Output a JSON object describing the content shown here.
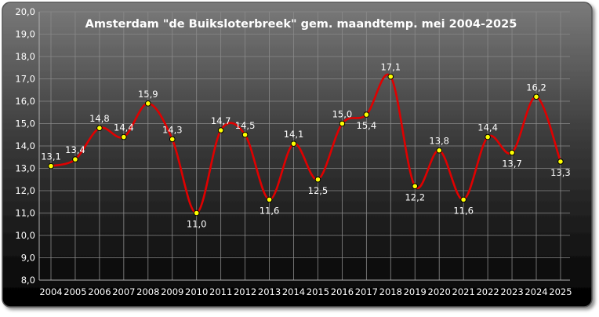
{
  "chart_data": {
    "type": "line",
    "title": "Amsterdam \"de Buiksloterbreek\" gem. maandtemp. mei 2004-2025",
    "xlabel": "",
    "ylabel": "",
    "ylim": [
      8.0,
      20.0
    ],
    "y_ticks": [
      "8,0",
      "9,0",
      "10,0",
      "11,0",
      "12,0",
      "13,0",
      "14,0",
      "15,0",
      "16,0",
      "17,0",
      "18,0",
      "19,0",
      "20,0"
    ],
    "categories": [
      "2004",
      "2005",
      "2006",
      "2007",
      "2008",
      "2009",
      "2010",
      "2011",
      "2012",
      "2013",
      "2014",
      "2015",
      "2016",
      "2017",
      "2018",
      "2019",
      "2020",
      "2021",
      "2022",
      "2023",
      "2024",
      "2025"
    ],
    "series": [
      {
        "values": [
          13.1,
          13.4,
          14.8,
          14.4,
          15.9,
          14.3,
          11.0,
          14.7,
          14.5,
          11.6,
          14.1,
          12.5,
          15.0,
          15.4,
          17.1,
          12.2,
          13.8,
          11.6,
          14.4,
          13.7,
          16.2,
          13.3
        ],
        "labels": [
          "13,1",
          "13,4",
          "14,8",
          "14,4",
          "15,9",
          "14,3",
          "11,0",
          "14,7",
          "14,5",
          "11,6",
          "14,1",
          "12,5",
          "15,0",
          "15,4",
          "17,1",
          "12,2",
          "13,8",
          "11,6",
          "14,4",
          "13,7",
          "16,2",
          "13,3"
        ],
        "label_position": [
          "above",
          "above",
          "above",
          "above",
          "above",
          "above",
          "below",
          "above",
          "above",
          "below",
          "above",
          "below",
          "above",
          "below",
          "above",
          "below",
          "above",
          "below",
          "above",
          "below",
          "above",
          "below"
        ]
      }
    ],
    "grid": true,
    "legend": "none",
    "colors": {
      "line": "#e00000",
      "marker_fill": "#ffff00",
      "marker_stroke": "#000000",
      "background_top": "#7a7a7a",
      "background_bottom": "#000000",
      "grid": "#8a8a8a",
      "text": "#ffffff"
    }
  }
}
